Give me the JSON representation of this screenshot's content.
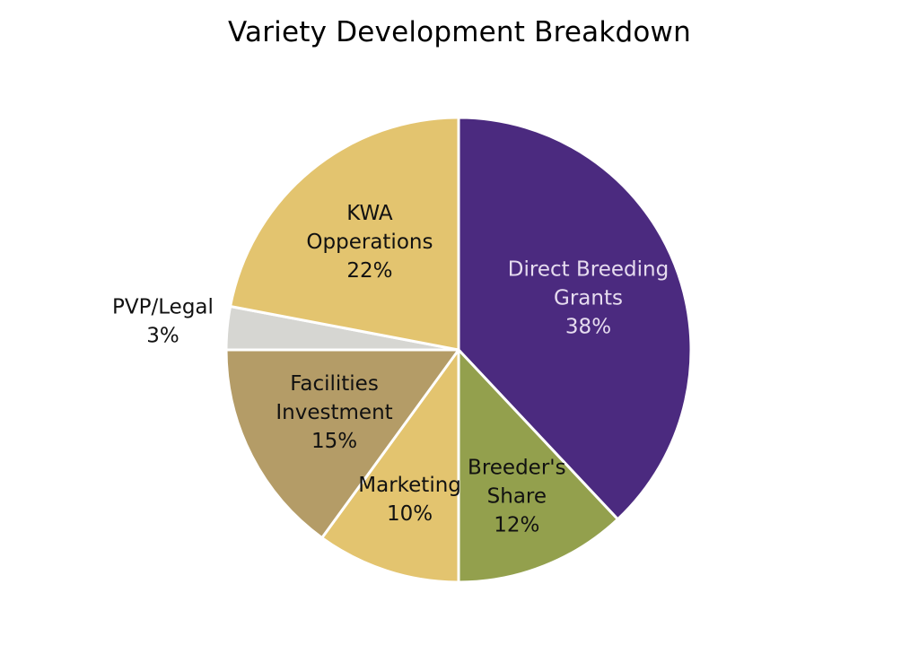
{
  "chart_data": {
    "type": "pie",
    "title": "Variety Development Breakdown",
    "start_angle_deg": 0,
    "direction": "clockwise",
    "slices": [
      {
        "label_lines": [
          "Direct Breeding",
          "Grants"
        ],
        "value": 38,
        "value_label": "38%",
        "color": "#4b2a7f",
        "text_color": "#e6dcef",
        "label_outside": false
      },
      {
        "label_lines": [
          "Breeder's",
          "Share"
        ],
        "value": 12,
        "value_label": "12%",
        "color": "#93a04d",
        "text_color": "#111111",
        "label_outside": false
      },
      {
        "label_lines": [
          "Marketing"
        ],
        "value": 10,
        "value_label": "10%",
        "color": "#e3c46f",
        "text_color": "#111111",
        "label_outside": false
      },
      {
        "label_lines": [
          "Facilities",
          "Investment"
        ],
        "value": 15,
        "value_label": "15%",
        "color": "#b49c67",
        "text_color": "#111111",
        "label_outside": false
      },
      {
        "label_lines": [
          "PVP/Legal"
        ],
        "value": 3,
        "value_label": "3%",
        "color": "#d6d6d2",
        "text_color": "#111111",
        "label_outside": true
      },
      {
        "label_lines": [
          "KWA",
          "Opperations"
        ],
        "value": 22,
        "value_label": "22%",
        "color": "#e3c46f",
        "text_color": "#111111",
        "label_outside": false
      }
    ],
    "legend": "none"
  }
}
